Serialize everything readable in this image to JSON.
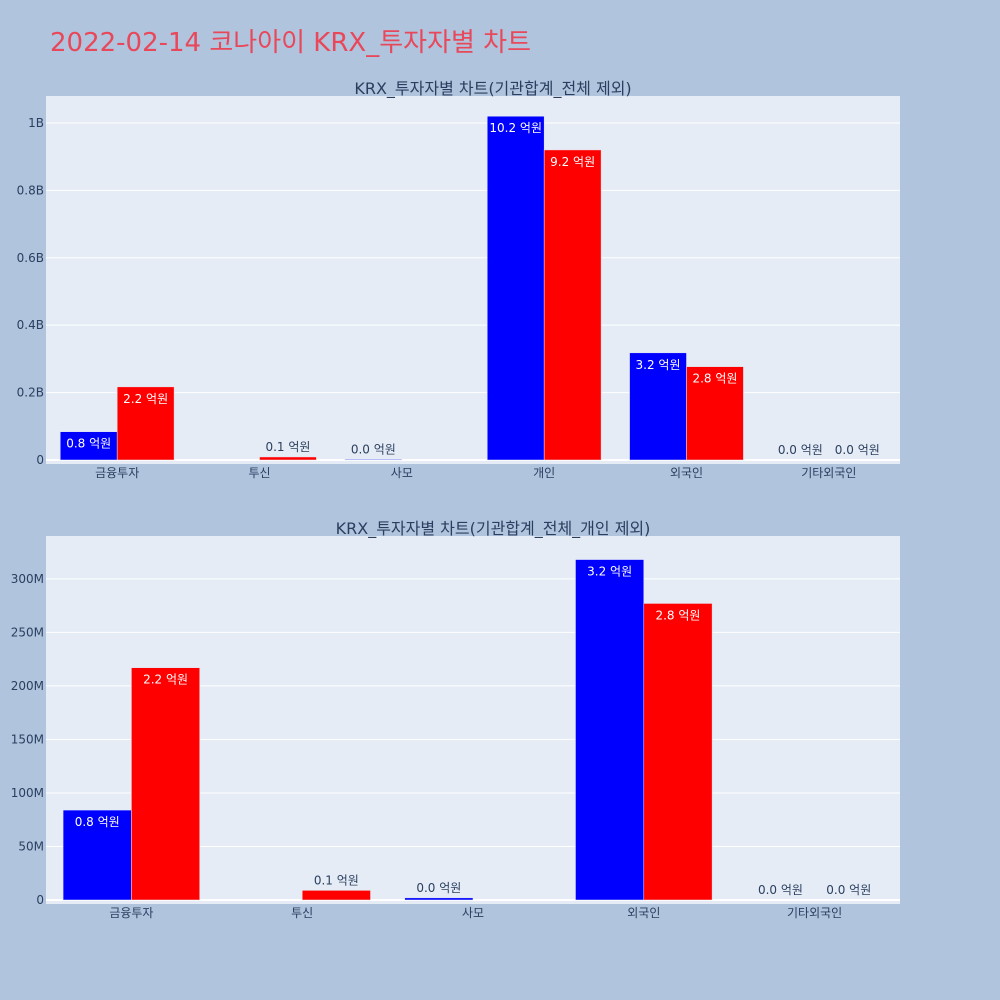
{
  "header": {
    "title": "2022-02-14 코나아이 KRX_투자자별 차트"
  },
  "colors": {
    "background": "#b0c4de",
    "plot_bg": "#e5ecf6",
    "series_a": "#0000ff",
    "series_b": "#ff0000",
    "title": "#e8485a"
  },
  "chart_data": [
    {
      "type": "bar",
      "title": "KRX_투자자별 차트(기관합계_전체 제외)",
      "categories": [
        "금융투자",
        "투신",
        "사모",
        "개인",
        "외국인",
        "기타외국인"
      ],
      "series": [
        {
          "color": "#0000ff",
          "values": [
            84000000,
            0,
            2000000,
            1020000000,
            318000000,
            0
          ],
          "labels": [
            "0.8 억원",
            "",
            "0.0 억원",
            "10.2 억원",
            "3.2 억원",
            "0.0 억원"
          ]
        },
        {
          "color": "#ff0000",
          "values": [
            217000000,
            9000000,
            0,
            920000000,
            277000000,
            0
          ],
          "labels": [
            "2.2 억원",
            "0.1 억원",
            "",
            "9.2 억원",
            "2.8 억원",
            "0.0 억원"
          ]
        }
      ],
      "ylim": [
        0,
        1080000000
      ],
      "yticks": [
        0,
        200000000,
        400000000,
        600000000,
        800000000,
        1000000000
      ],
      "ytick_labels": [
        "0",
        "0.2B",
        "0.4B",
        "0.6B",
        "0.8B",
        "1B"
      ],
      "grid": true
    },
    {
      "type": "bar",
      "title": "KRX_투자자별 차트(기관합계_전체_개인 제외)",
      "categories": [
        "금융투자",
        "투신",
        "사모",
        "외국인",
        "기타외국인"
      ],
      "series": [
        {
          "color": "#0000ff",
          "values": [
            84000000,
            0,
            2000000,
            318000000,
            0
          ],
          "labels": [
            "0.8 억원",
            "",
            "0.0 억원",
            "3.2 억원",
            "0.0 억원"
          ]
        },
        {
          "color": "#ff0000",
          "values": [
            217000000,
            9000000,
            0,
            277000000,
            0
          ],
          "labels": [
            "2.2 억원",
            "0.1 억원",
            "",
            "2.8 억원",
            "0.0 억원"
          ]
        }
      ],
      "ylim": [
        0,
        340000000
      ],
      "yticks": [
        0,
        50000000,
        100000000,
        150000000,
        200000000,
        250000000,
        300000000
      ],
      "ytick_labels": [
        "0",
        "50M",
        "100M",
        "150M",
        "200M",
        "250M",
        "300M"
      ],
      "grid": true
    }
  ]
}
